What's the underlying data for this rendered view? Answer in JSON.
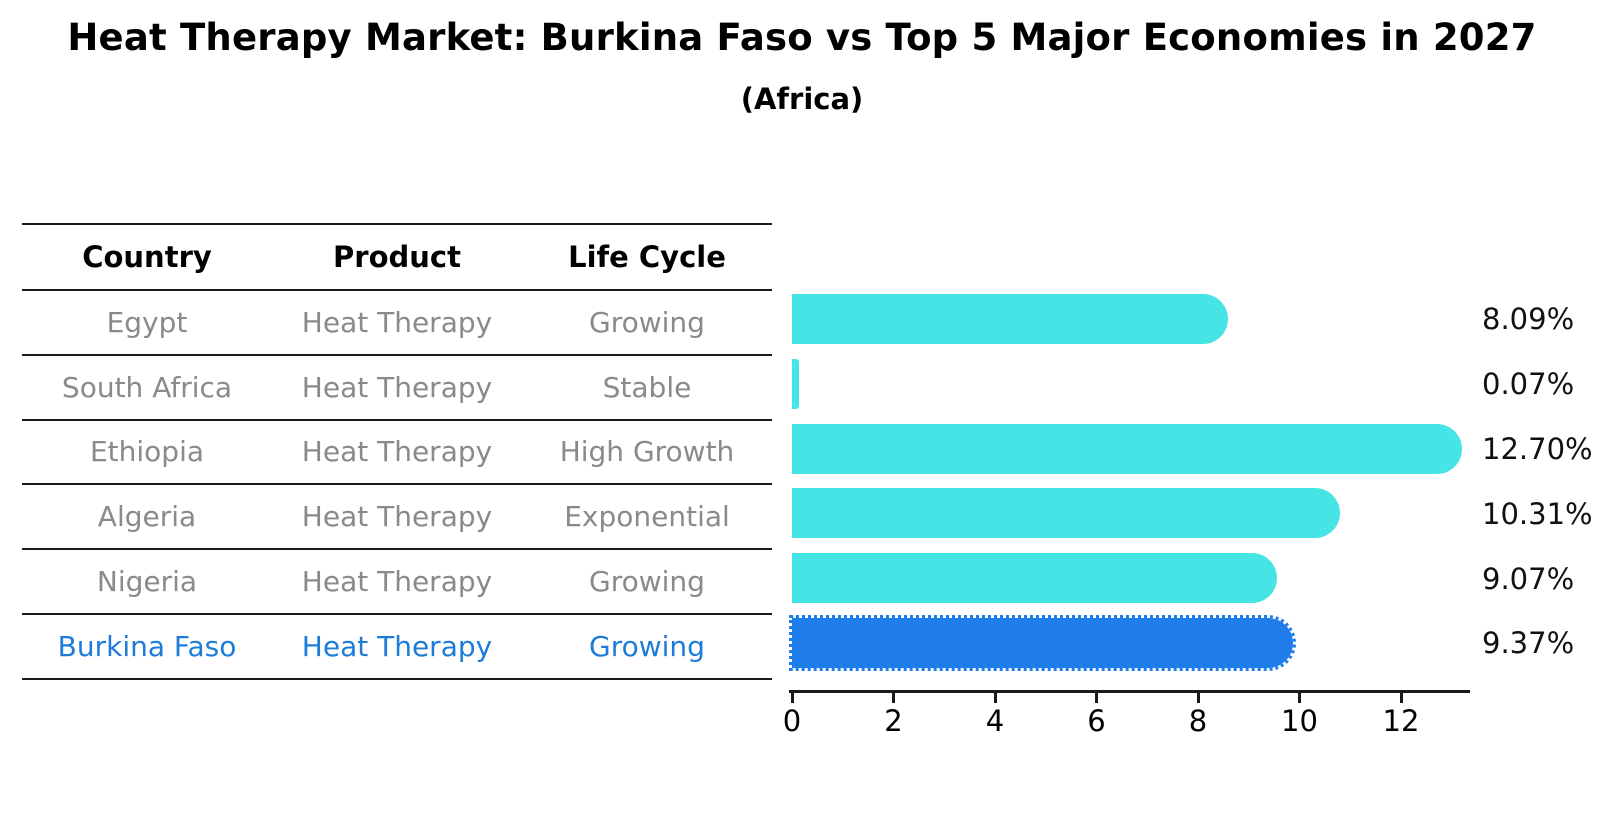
{
  "title": "Heat Therapy Market: Burkina Faso vs Top 5 Major Economies in 2027",
  "subtitle": "(Africa)",
  "table": {
    "headers": [
      "Country",
      "Product",
      "Life Cycle"
    ],
    "rows": [
      {
        "country": "Egypt",
        "product": "Heat Therapy",
        "life_cycle": "Growing",
        "highlighted": false
      },
      {
        "country": "South Africa",
        "product": "Heat Therapy",
        "life_cycle": "Stable",
        "highlighted": false
      },
      {
        "country": "Ethiopia",
        "product": "Heat Therapy",
        "life_cycle": "High Growth",
        "highlighted": false
      },
      {
        "country": "Algeria",
        "product": "Heat Therapy",
        "life_cycle": "Exponential",
        "highlighted": false
      },
      {
        "country": "Nigeria",
        "product": "Heat Therapy",
        "life_cycle": "Growing",
        "highlighted": false
      },
      {
        "country": "Burkina Faso",
        "product": "Heat Therapy",
        "life_cycle": "Growing",
        "highlighted": true
      }
    ]
  },
  "chart_data": {
    "type": "bar",
    "orientation": "horizontal",
    "title": "Heat Therapy Market: Burkina Faso vs Top 5 Major Economies in 2027",
    "subtitle": "(Africa)",
    "categories": [
      "Egypt",
      "South Africa",
      "Ethiopia",
      "Algeria",
      "Nigeria",
      "Burkina Faso"
    ],
    "values": [
      8.09,
      0.07,
      12.7,
      10.31,
      9.07,
      9.37
    ],
    "value_labels": [
      "8.09%",
      "0.07%",
      "12.70%",
      "10.31%",
      "9.07%",
      "9.37%"
    ],
    "unit": "%",
    "x_ticks": [
      0,
      2,
      4,
      6,
      8,
      10,
      12
    ],
    "xlim": [
      0,
      13.35
    ],
    "grid": false,
    "legend": false,
    "highlight_index": 5,
    "bar_color": "#46E4E4",
    "highlight_bar_color": "#1F7DEB"
  },
  "colors": {
    "background": "#FFFFFF",
    "bar_cyan": "#46E4E4",
    "bar_blue": "#1F7DEB",
    "highlight_text": "#1E7CD9",
    "row_text": "#8A8A8A",
    "line": "#1A1A1A",
    "label_text": "#111111"
  }
}
